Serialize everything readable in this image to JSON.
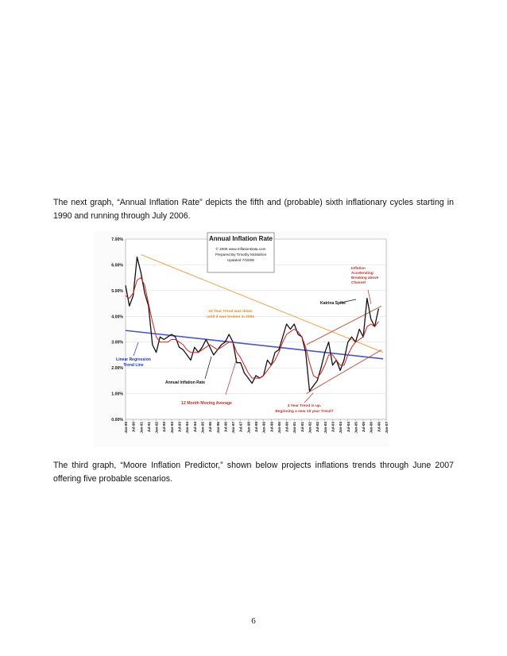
{
  "paragraphs": {
    "p1": "The next graph, “Annual Inflation Rate” depicts the fifth and (probable) sixth inflationary cycles starting in 1990 and running through July 2006.",
    "p2": "The third graph, “Moore Inflation Predictor,” shown below projects inflations trends through June 2007 offering five probable scenarios."
  },
  "page_number": "6",
  "chart_data": {
    "type": "line",
    "title": "Annual Inflation Rate",
    "title_box": [
      "© 2006 www.InflationData.com",
      "Prepared By Timothy McMahon",
      "Updated 7/19/06"
    ],
    "ylim": [
      0,
      7
    ],
    "y_ticks": [
      "0.00%",
      "1.00%",
      "2.00%",
      "3.00%",
      "4.00%",
      "5.00%",
      "6.00%",
      "7.00%"
    ],
    "x_ticks": [
      "Jan-90",
      "Jul-90",
      "Jan-91",
      "Jul-91",
      "Jan-92",
      "Jul-92",
      "Jan-93",
      "Jul-93",
      "Jan-94",
      "Jul-94",
      "Jan-95",
      "Jul-95",
      "Jan-96",
      "Jul-96",
      "Jan-97",
      "Jul-97",
      "Jan-98",
      "Jul-98",
      "Jan-99",
      "Jul-99",
      "Jan-00",
      "Jul-00",
      "Jan-01",
      "Jul-01",
      "Jan-02",
      "Jul-02",
      "Jan-03",
      "Jul-03",
      "Jan-04",
      "Jul-04",
      "Jan-05",
      "Jul-05",
      "Jan-06",
      "Jul-06",
      "Jan-07"
    ],
    "x_range": [
      1990.0,
      2007.0
    ],
    "series": [
      {
        "name": "Annual Inflation Rate",
        "color": "#111111",
        "x": [
          1990.0,
          1990.25,
          1990.5,
          1990.75,
          1991.0,
          1991.25,
          1991.5,
          1991.75,
          1992.0,
          1992.25,
          1992.5,
          1992.75,
          1993.0,
          1993.25,
          1993.5,
          1993.75,
          1994.0,
          1994.25,
          1994.5,
          1994.75,
          1995.0,
          1995.25,
          1995.5,
          1995.75,
          1996.0,
          1996.25,
          1996.5,
          1996.75,
          1997.0,
          1997.25,
          1997.5,
          1997.75,
          1998.0,
          1998.25,
          1998.5,
          1998.75,
          1999.0,
          1999.25,
          1999.5,
          1999.75,
          2000.0,
          2000.25,
          2000.5,
          2000.75,
          2001.0,
          2001.25,
          2001.5,
          2001.75,
          2002.0,
          2002.25,
          2002.5,
          2002.75,
          2003.0,
          2003.25,
          2003.5,
          2003.75,
          2004.0,
          2004.25,
          2004.5,
          2004.75,
          2005.0,
          2005.25,
          2005.5,
          2005.75,
          2006.0,
          2006.25,
          2006.5
        ],
        "y": [
          5.2,
          4.4,
          4.8,
          6.3,
          5.7,
          4.9,
          4.4,
          2.9,
          2.6,
          3.2,
          3.1,
          3.2,
          3.3,
          3.2,
          2.8,
          2.7,
          2.5,
          2.3,
          2.8,
          2.6,
          2.8,
          3.1,
          2.8,
          2.5,
          2.7,
          2.9,
          3.0,
          3.3,
          3.0,
          2.2,
          2.2,
          1.8,
          1.6,
          1.4,
          1.7,
          1.6,
          1.7,
          2.3,
          2.1,
          2.6,
          2.7,
          3.2,
          3.7,
          3.5,
          3.7,
          3.3,
          3.2,
          2.6,
          1.1,
          1.3,
          1.5,
          2.0,
          2.6,
          3.0,
          2.1,
          2.3,
          1.9,
          2.3,
          3.0,
          3.2,
          3.0,
          3.5,
          3.2,
          4.7,
          3.9,
          3.6,
          4.3
        ]
      },
      {
        "name": "12 Month Moving Average",
        "color": "#d42020",
        "x": [
          1990.0,
          1990.25,
          1990.5,
          1990.75,
          1991.0,
          1991.25,
          1991.5,
          1991.75,
          1992.0,
          1992.25,
          1992.5,
          1992.75,
          1993.0,
          1993.25,
          1993.5,
          1993.75,
          1994.0,
          1994.25,
          1994.5,
          1994.75,
          1995.0,
          1995.25,
          1995.5,
          1995.75,
          1996.0,
          1996.25,
          1996.5,
          1996.75,
          1997.0,
          1997.25,
          1997.5,
          1997.75,
          1998.0,
          1998.25,
          1998.5,
          1998.75,
          1999.0,
          1999.25,
          1999.5,
          1999.75,
          2000.0,
          2000.25,
          2000.5,
          2000.75,
          2001.0,
          2001.25,
          2001.5,
          2001.75,
          2002.0,
          2002.25,
          2002.5,
          2002.75,
          2003.0,
          2003.25,
          2003.5,
          2003.75,
          2004.0,
          2004.25,
          2004.5,
          2004.75,
          2005.0,
          2005.25,
          2005.5,
          2005.75,
          2006.0,
          2006.25,
          2006.5
        ],
        "y": [
          4.8,
          4.7,
          4.9,
          5.4,
          5.5,
          5.2,
          4.5,
          3.8,
          3.2,
          3.0,
          3.0,
          3.0,
          3.1,
          3.1,
          3.0,
          2.9,
          2.7,
          2.6,
          2.6,
          2.6,
          2.7,
          2.8,
          2.9,
          2.8,
          2.7,
          2.8,
          2.9,
          3.0,
          3.0,
          2.6,
          2.4,
          2.1,
          1.8,
          1.6,
          1.6,
          1.6,
          1.7,
          1.9,
          2.1,
          2.3,
          2.6,
          3.0,
          3.3,
          3.4,
          3.5,
          3.4,
          3.2,
          2.8,
          2.2,
          1.7,
          1.6,
          1.8,
          2.1,
          2.5,
          2.5,
          2.3,
          2.1,
          2.1,
          2.5,
          2.8,
          3.0,
          3.1,
          3.2,
          3.6,
          3.7,
          3.6,
          3.8
        ]
      }
    ],
    "trend_lines": [
      {
        "name": "15 Year Trend",
        "color": "#f0a040",
        "x": [
          1991.0,
          2006.8
        ],
        "y": [
          6.4,
          2.6
        ]
      },
      {
        "name": "Linear Regression Trend Line",
        "color": "#3344cc",
        "x": [
          1990.0,
          2006.8
        ],
        "y": [
          3.45,
          2.35
        ]
      },
      {
        "name": "Channel Upper",
        "color": "#b85040",
        "x": [
          2001.8,
          2006.7
        ],
        "y": [
          2.9,
          4.4
        ]
      },
      {
        "name": "Channel Lower",
        "color": "#b85040",
        "x": [
          2001.8,
          2006.7
        ],
        "y": [
          1.0,
          2.7
        ]
      }
    ],
    "annotations": {
      "inflation_accelerating": [
        "Inflation",
        "Accelerating:",
        "Breaking above",
        "Channel"
      ],
      "katrina_spike": "Katrina Spike",
      "fifteen_year_trend": [
        "15 Year Trend was down",
        "until it was broken in 2004"
      ],
      "linear_regression": [
        "Linear Regression",
        "Trend Line"
      ],
      "annual_inflation_rate": "Annual Inflation Rate",
      "moving_average": "12 Month Moving Average",
      "four_year_trend": [
        "4 Year Trend is up.",
        "Beginning a new 15 year Trend?"
      ]
    }
  }
}
